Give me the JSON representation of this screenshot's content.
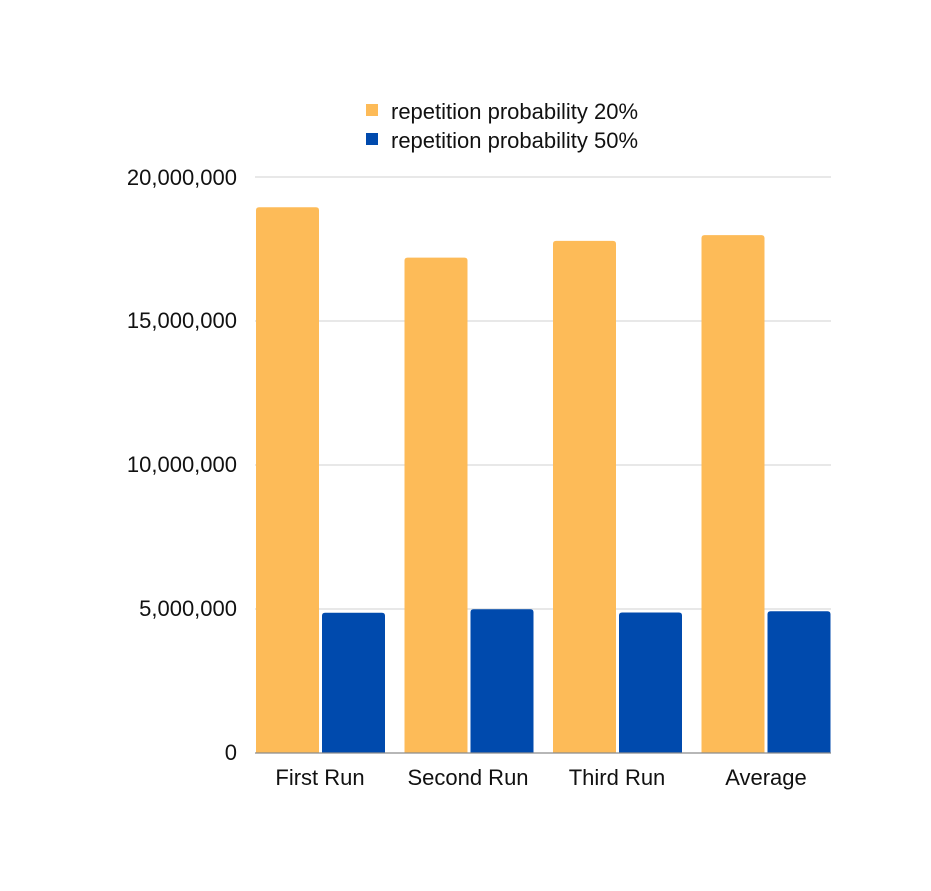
{
  "chart_data": {
    "type": "bar",
    "categories": [
      "First Run",
      "Second Run",
      "Third Run",
      "Average"
    ],
    "series": [
      {
        "name": "repetition probability 20%",
        "color": "#FDBB58",
        "values": [
          18950000,
          17200000,
          17780000,
          17980000
        ]
      },
      {
        "name": "repetition probability 50%",
        "color": "#004AAD",
        "values": [
          4870000,
          4990000,
          4880000,
          4920000
        ]
      }
    ],
    "y_ticks": [
      "0",
      "5,000,000",
      "10,000,000",
      "15,000,000",
      "20,000,000"
    ],
    "ylim": [
      0,
      20000000
    ],
    "grid": true,
    "legend_position": "top"
  }
}
